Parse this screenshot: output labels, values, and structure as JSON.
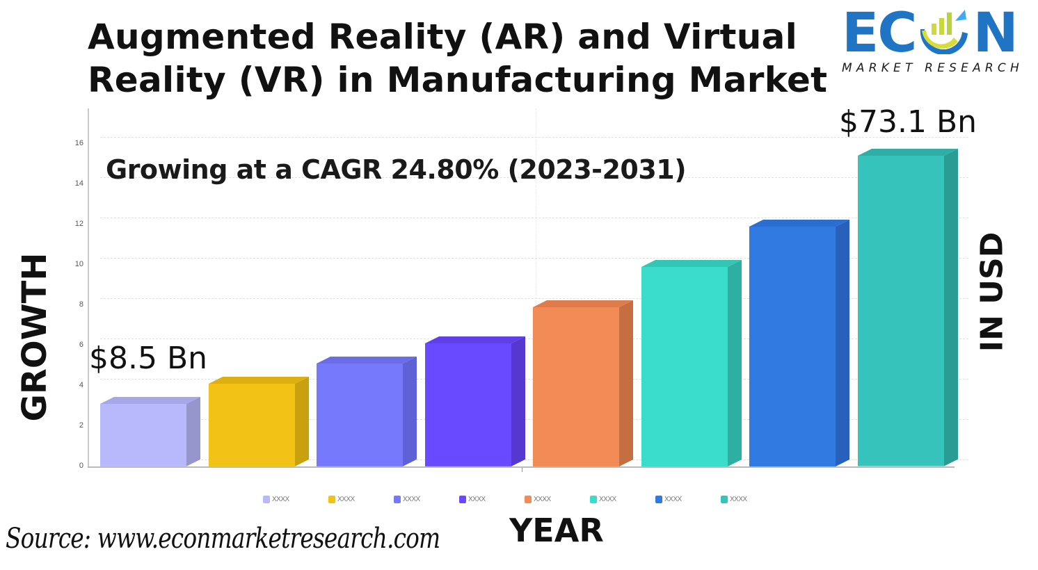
{
  "title": {
    "line1": "Augmented Reality (AR) and Virtual",
    "line2": "Reality (VR) in Manufacturing Market"
  },
  "logo": {
    "word": "ECON",
    "subtitle": "MARKET RESEARCH",
    "colors": {
      "primary": "#1f74c4",
      "accent_yellow": "#d8dc3a",
      "accent_light_blue": "#3fa9f5"
    }
  },
  "annotations": {
    "cagr": "Growing at a CAGR 24.80% (2023-2031)",
    "start_value": "$8.5 Bn",
    "end_value": "$73.1 Bn"
  },
  "axes": {
    "ylabel_left": "GROWTH",
    "ylabel_right": "IN USD",
    "xlabel": "YEAR",
    "y_ticks": [
      "0",
      "2",
      "4",
      "6",
      "8",
      "10",
      "12",
      "14",
      "16"
    ]
  },
  "legend": [
    {
      "label": "XXXX",
      "color": "#b8b9fc"
    },
    {
      "label": "XXXX",
      "color": "#f2c314"
    },
    {
      "label": "XXXX",
      "color": "#7779fd"
    },
    {
      "label": "XXXX",
      "color": "#6a4afe"
    },
    {
      "label": "XXXX",
      "color": "#f38b56"
    },
    {
      "label": "XXXX",
      "color": "#3adccb"
    },
    {
      "label": "XXXX",
      "color": "#317ae2"
    },
    {
      "label": "XXXX",
      "color": "#36c3bb"
    }
  ],
  "source": "Source:  www.econmarketresearch.com",
  "chart_data": {
    "type": "bar",
    "title": "Augmented Reality (AR) and Virtual Reality (VR) in Manufacturing Market",
    "subtitle": "Growing at a CAGR 24.80% (2023-2031)",
    "xlabel": "YEAR",
    "ylabel": "GROWTH",
    "ylabel_secondary": "IN USD",
    "categories": [
      "XXXX",
      "XXXX",
      "XXXX",
      "XXXX",
      "XXXX",
      "XXXX",
      "XXXX",
      "XXXX"
    ],
    "values": [
      3.1,
      4.1,
      5.1,
      6.1,
      7.9,
      9.9,
      11.9,
      15.4
    ],
    "colors": [
      "#b8b9fc",
      "#f2c314",
      "#7779fd",
      "#6a4afe",
      "#f38b56",
      "#3adccb",
      "#317ae2",
      "#36c3bb"
    ],
    "side_colors": [
      "#9597cc",
      "#c9a10f",
      "#5f61d6",
      "#5638d0",
      "#c46e42",
      "#2dafa1",
      "#2861bb",
      "#2a9c94"
    ],
    "top_colors": [
      "#a6a7e6",
      "#dcb010",
      "#6a6ce8",
      "#5f3fe8",
      "#df7c4c",
      "#33c6b4",
      "#2c6ed0",
      "#30aea6"
    ],
    "annotations": [
      {
        "text": "$8.5 Bn",
        "near_index": 0
      },
      {
        "text": "$73.1 Bn",
        "near_index": 7
      }
    ],
    "ylim": [
      0,
      17
    ],
    "y_ticks": [
      0,
      2,
      4,
      6,
      8,
      10,
      12,
      14,
      16
    ],
    "grid": true,
    "legend_position": "bottom",
    "style": "3d"
  }
}
